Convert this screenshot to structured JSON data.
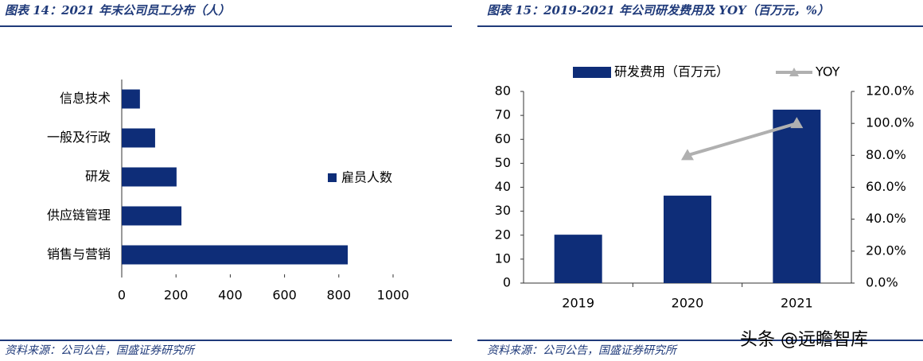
{
  "chart_data": [
    {
      "type": "bar",
      "orientation": "horizontal",
      "title": "图表 14：2021 年末公司员工分布（人）",
      "source": "资料来源：公司公告，国盛证券研究所",
      "categories": [
        "信息技术",
        "一般及行政",
        "研发",
        "供应链管理",
        "销售与营销"
      ],
      "series": [
        {
          "name": "雇员人数",
          "color": "#0e2d78",
          "values": [
            67,
            123,
            202,
            220,
            833
          ]
        }
      ],
      "xlim": [
        0,
        1000
      ],
      "xticks": [
        0,
        200,
        400,
        600,
        800,
        1000
      ],
      "grid": false,
      "legend": "right"
    },
    {
      "type": "combo",
      "title": "图表 15：2019-2021 年公司研发费用及 YOY（百万元，%）",
      "source": "资料来源：公司公告，国盛证券研究所",
      "categories": [
        "2019",
        "2020",
        "2021"
      ],
      "series": [
        {
          "name": "研发费用（百万元）",
          "type": "bar",
          "color": "#0e2d78",
          "values": [
            20.2,
            36.5,
            72.4
          ]
        },
        {
          "name": "YOY",
          "type": "line",
          "axis": "y2",
          "color": "#b0b0b0",
          "values": [
            null,
            80,
            100
          ]
        }
      ],
      "ylim": [
        0,
        80
      ],
      "yticks": [
        0,
        10,
        20,
        30,
        40,
        50,
        60,
        70,
        80
      ],
      "y2lim": [
        0,
        120
      ],
      "y2ticks": [
        {
          "value": 0,
          "label": "0.0%"
        },
        {
          "value": 20,
          "label": "20.0%"
        },
        {
          "value": 40,
          "label": "40.0%"
        },
        {
          "value": 60,
          "label": "60.0%"
        },
        {
          "value": 80,
          "label": "80.0%"
        },
        {
          "value": 100,
          "label": "100.0%"
        },
        {
          "value": 120,
          "label": "120.0%"
        }
      ],
      "grid": false,
      "legend": "top"
    }
  ],
  "watermark": "头条 @远瞻智库"
}
